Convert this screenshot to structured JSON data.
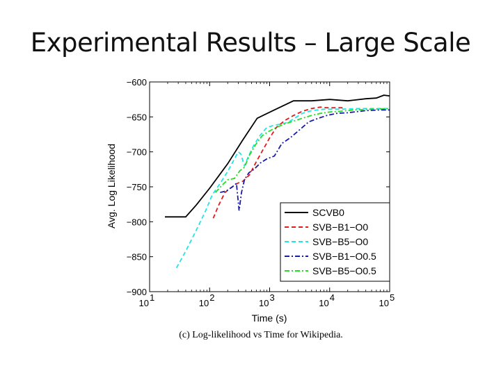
{
  "slide": {
    "title": "Experimental Results – Large Scale"
  },
  "chart_data": {
    "type": "line",
    "title": "",
    "caption": "(c) Log-likelihood vs Time for Wikipedia.",
    "xlabel": "Time (s)",
    "ylabel": "Avg. Log Likelihood",
    "xscale": "log",
    "xlim": [
      10,
      100000
    ],
    "ylim": [
      -900,
      -600
    ],
    "xticks": [
      {
        "value": 10,
        "base": "10",
        "exp": "1"
      },
      {
        "value": 100,
        "base": "10",
        "exp": "2"
      },
      {
        "value": 1000,
        "base": "10",
        "exp": "3"
      },
      {
        "value": 10000,
        "base": "10",
        "exp": "4"
      },
      {
        "value": 100000,
        "base": "10",
        "exp": "5"
      }
    ],
    "yticks": [
      {
        "value": -600,
        "label": "−600"
      },
      {
        "value": -650,
        "label": "−650"
      },
      {
        "value": -700,
        "label": "−700"
      },
      {
        "value": -750,
        "label": "−750"
      },
      {
        "value": -800,
        "label": "−800"
      },
      {
        "value": -850,
        "label": "−850"
      },
      {
        "value": -900,
        "label": "−900"
      }
    ],
    "legend_position": "bottom-right",
    "series": [
      {
        "name": "SCVB0",
        "color": "#000000",
        "dash": "solid",
        "x": [
          18,
          40,
          60,
          100,
          200,
          350,
          620,
          1200,
          2500,
          5000,
          10000,
          20000,
          40000,
          60000,
          80000,
          100000
        ],
        "y": [
          -793,
          -793,
          -776,
          -752,
          -717,
          -684,
          -652,
          -640,
          -627,
          -627,
          -625,
          -627,
          -624,
          -623,
          -619,
          -620
        ]
      },
      {
        "name": "SVB−B1−O0",
        "color": "#e41a1c",
        "dash": "dashed",
        "x": [
          115,
          140,
          180,
          240,
          290,
          360,
          460,
          600,
          800,
          1000,
          1300,
          1800,
          2500,
          3500,
          5000,
          7000,
          9000,
          12000,
          15000,
          18000
        ],
        "y": [
          -795,
          -777,
          -758,
          -750,
          -745,
          -742,
          -733,
          -714,
          -695,
          -680,
          -665,
          -655,
          -648,
          -642,
          -638,
          -636,
          -637,
          -637,
          -637,
          -637
        ]
      },
      {
        "name": "SVB−B5−O0",
        "color": "#1fe6e6",
        "dash": "dashed",
        "x": [
          28,
          40,
          60,
          85,
          110,
          150,
          200,
          260,
          300,
          330,
          380,
          450,
          550,
          700,
          900,
          1200,
          1600,
          2000,
          2600,
          3500,
          5000,
          8000,
          15000,
          30000,
          60000,
          100000
        ],
        "y": [
          -866,
          -842,
          -812,
          -785,
          -762,
          -745,
          -728,
          -710,
          -700,
          -703,
          -720,
          -705,
          -690,
          -676,
          -665,
          -662,
          -660,
          -658,
          -652,
          -645,
          -641,
          -639,
          -639,
          -638,
          -638,
          -638
        ]
      },
      {
        "name": "SVB−B1−O0.5",
        "color": "#1a1aa8",
        "dash": "dashdot",
        "x": [
          150,
          190,
          240,
          280,
          310,
          340,
          380,
          450,
          550,
          700,
          900,
          1200,
          1600,
          2200,
          3000,
          4500,
          6500,
          9000,
          13000,
          20000,
          40000,
          70000,
          100000
        ],
        "y": [
          -758,
          -756,
          -750,
          -745,
          -784,
          -758,
          -740,
          -730,
          -725,
          -716,
          -710,
          -706,
          -688,
          -680,
          -670,
          -657,
          -652,
          -648,
          -645,
          -644,
          -641,
          -640,
          -640
        ]
      },
      {
        "name": "SVB−B5−O0.5",
        "color": "#22dd22",
        "dash": "dashdot",
        "x": [
          125,
          160,
          200,
          260,
          320,
          380,
          460,
          580,
          750,
          1000,
          1300,
          1800,
          2500,
          3500,
          5000,
          7000,
          10000,
          15000,
          25000,
          50000,
          100000
        ],
        "y": [
          -758,
          -748,
          -740,
          -738,
          -727,
          -722,
          -705,
          -690,
          -677,
          -670,
          -665,
          -660,
          -656,
          -652,
          -648,
          -645,
          -643,
          -642,
          -640,
          -639,
          -638
        ]
      }
    ]
  }
}
